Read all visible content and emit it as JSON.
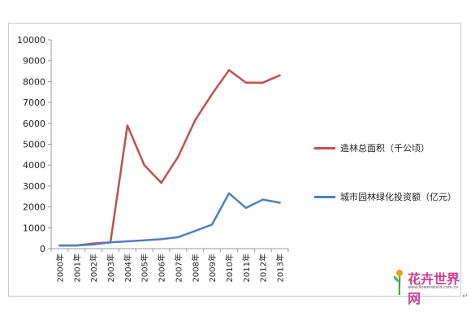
{
  "chart_data": {
    "type": "line",
    "title": "",
    "xlabel": "",
    "ylabel": "",
    "categories": [
      "2000年",
      "2001年",
      "2002年",
      "2003年",
      "2004年",
      "2005年",
      "2006年",
      "2007年",
      "2008年",
      "2009年",
      "2010年",
      "2011年",
      "2012年",
      "2013年"
    ],
    "ylim": [
      0,
      10000
    ],
    "yticks": [
      0,
      1000,
      2000,
      3000,
      4000,
      5000,
      6000,
      7000,
      8000,
      9000,
      10000
    ],
    "grid": false,
    "legend_position": "right",
    "series": [
      {
        "name": "造林总面积（千公顷）",
        "color": "#c0504d",
        "values": [
          150,
          150,
          250,
          300,
          5900,
          4000,
          3150,
          4400,
          6150,
          7400,
          8550,
          7950,
          7950,
          8300
        ]
      },
      {
        "name": "城市园林绿化投资额（亿元）",
        "color": "#4f81bd",
        "values": [
          150,
          150,
          200,
          300,
          350,
          400,
          450,
          550,
          850,
          1150,
          2650,
          1950,
          2350,
          2200
        ]
      }
    ]
  },
  "watermark": {
    "name": "花卉世界网",
    "url": "www.flowerworld.com.cn"
  },
  "corner_mark": "↵"
}
